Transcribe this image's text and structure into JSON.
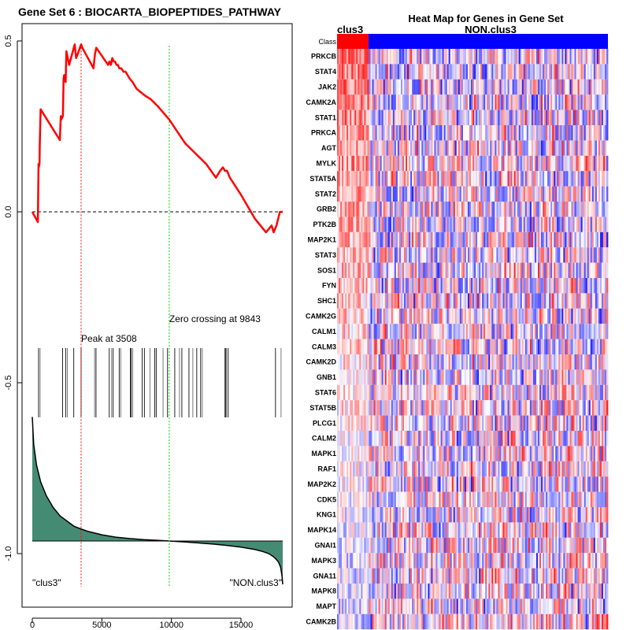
{
  "chart_data": [
    {
      "type": "line",
      "title": "Gene Set  6 : BIOCARTA_BIOPEPTIDES_PATHWAY",
      "xlabel": "",
      "ylabel": "",
      "xlim": [
        0,
        18000
      ],
      "ylim": [
        -1.15,
        0.55
      ],
      "x_ticks": [
        0,
        5000,
        10000,
        15000
      ],
      "x_tick_labels": [
        "0",
        "5000",
        "10000",
        "15000"
      ],
      "y_ticks": [
        0.5,
        0.0,
        -0.5,
        -1.0
      ],
      "y_tick_labels": [
        "0.5",
        "0.0",
        "-0.5",
        "-1.0"
      ],
      "grid": false,
      "series": [
        {
          "name": "running-enrichment-score",
          "color": "#ff0000",
          "x": [
            0,
            400,
            450,
            460,
            520,
            540,
            600,
            1980,
            2050,
            2080,
            2200,
            2250,
            2290,
            2400,
            2450,
            2650,
            3050,
            3150,
            3250,
            3508,
            3600,
            4400,
            4500,
            4600,
            5450,
            5550,
            5650,
            5750,
            5850,
            5950,
            6050,
            6150,
            6250,
            6400,
            6550,
            6700,
            6850,
            7000,
            7200,
            7500,
            7800,
            8100,
            8500,
            9000,
            9843,
            10500,
            11000,
            11500,
            12000,
            12500,
            13200,
            13500,
            13700,
            13850,
            14000,
            14200,
            15000,
            16000,
            16800,
            17200,
            17350,
            17550,
            17800,
            17900,
            18000
          ],
          "y": [
            0.0,
            -0.03,
            0.14,
            0.13,
            0.14,
            0.2,
            0.3,
            0.21,
            0.28,
            0.27,
            0.28,
            0.39,
            0.4,
            0.38,
            0.47,
            0.43,
            0.49,
            0.45,
            0.46,
            0.49,
            0.48,
            0.42,
            0.46,
            0.48,
            0.43,
            0.44,
            0.43,
            0.45,
            0.44,
            0.44,
            0.43,
            0.43,
            0.42,
            0.42,
            0.41,
            0.41,
            0.4,
            0.39,
            0.38,
            0.36,
            0.35,
            0.34,
            0.33,
            0.31,
            0.27,
            0.23,
            0.2,
            0.18,
            0.16,
            0.14,
            0.1,
            0.12,
            0.13,
            0.12,
            0.12,
            0.1,
            0.05,
            -0.02,
            -0.06,
            -0.04,
            -0.06,
            -0.04,
            0.0,
            0.0,
            0.0
          ]
        },
        {
          "name": "ranked-list-metric",
          "color": "#000000",
          "fill": "#458b74",
          "baseline": -0.963,
          "x": [
            0,
            100,
            300,
            600,
            1000,
            1500,
            2000,
            2500,
            3000,
            3508,
            4000,
            5000,
            6000,
            7000,
            8000,
            9000,
            9843,
            11000,
            12000,
            13000,
            14000,
            15000,
            16000,
            16500,
            17000,
            17300,
            17500,
            17700,
            17850,
            17950,
            18000
          ],
          "y": [
            -0.6,
            -0.68,
            -0.74,
            -0.79,
            -0.83,
            -0.865,
            -0.89,
            -0.905,
            -0.92,
            -0.928,
            -0.935,
            -0.945,
            -0.952,
            -0.956,
            -0.959,
            -0.961,
            -0.963,
            -0.966,
            -0.969,
            -0.972,
            -0.976,
            -0.981,
            -0.988,
            -0.993,
            -1.0,
            -1.008,
            -1.015,
            -1.025,
            -1.04,
            -1.065,
            -1.09
          ]
        }
      ],
      "hits_x": [
        450,
        560,
        2180,
        2400,
        2520,
        2980,
        3508,
        4480,
        4580,
        5530,
        5700,
        5810,
        6250,
        6360,
        7050,
        7110,
        7220,
        7900,
        8060,
        8460,
        8800,
        8910,
        9400,
        9720,
        10240,
        10580,
        10750,
        11260,
        11540,
        11820,
        12100,
        12220,
        13850,
        13910,
        13960,
        14080,
        17480,
        17880
      ],
      "reference_lines": [
        {
          "name": "peak",
          "x": 3508,
          "color": "#ff0000",
          "label": "Peak at 3508"
        },
        {
          "name": "zero-crossing",
          "x": 9843,
          "color": "#00dd00",
          "label": "Zero crossing at 9843"
        }
      ],
      "zero_line": {
        "y": 0.0,
        "style": "dashed"
      },
      "annotations": [
        "\"clus3\"",
        "\"NON.clus3\""
      ]
    },
    {
      "type": "heatmap",
      "title": "Heat Map for Genes in Gene Set",
      "class_labels": [
        "clus3",
        "NON.clus3"
      ],
      "class_row_label": "Class",
      "class_colors": [
        "#ff0000",
        "#0000ff"
      ],
      "class_split_fraction": 0.116,
      "rows": [
        "PRKCB",
        "STAT4",
        "JAK2",
        "CAMK2A",
        "STAT1",
        "PRKCA",
        "AGT",
        "MYLK",
        "STAT5A",
        "STAT2",
        "GRB2",
        "PTK2B",
        "MAP2K1",
        "STAT3",
        "SOS1",
        "FYN",
        "SHC1",
        "CAMK2G",
        "CALM1",
        "CALM3",
        "CAMK2D",
        "GNB1",
        "STAT6",
        "STAT5B",
        "PLCG1",
        "CALM2",
        "MAPK1",
        "RAF1",
        "MAP2K2",
        "CDK5",
        "KNG1",
        "MAPK14",
        "GNAI1",
        "MAPK3",
        "GNA11",
        "MAPK8",
        "MAPT",
        "CAMK2B"
      ],
      "color_low": "#0000ff",
      "color_mid": "#ffffff",
      "color_high": "#ff0000"
    }
  ]
}
